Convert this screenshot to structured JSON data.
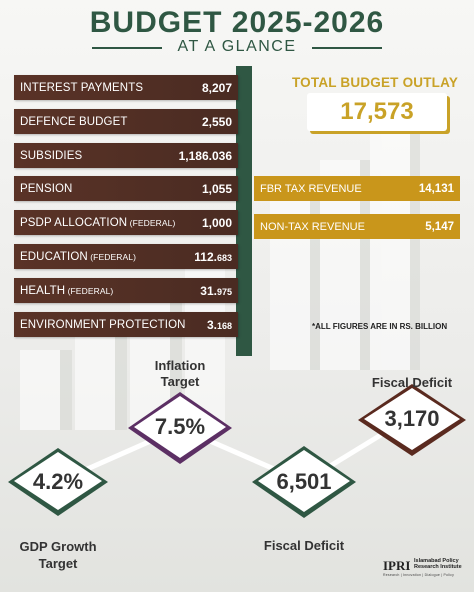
{
  "header": {
    "title": "BUDGET 2025-2026",
    "subtitle": "AT A GLANCE"
  },
  "expenditures": [
    {
      "label": "INTEREST PAYMENTS",
      "sub": "",
      "value": "8,207",
      "value_small": ""
    },
    {
      "label": "DEFENCE BUDGET",
      "sub": "",
      "value": "2,550",
      "value_small": ""
    },
    {
      "label": "SUBSIDIES",
      "sub": "",
      "value": "1,186.036",
      "value_small": ""
    },
    {
      "label": "PENSION",
      "sub": "",
      "value": "1,055",
      "value_small": ""
    },
    {
      "label": "PSDP ALLOCATION",
      "sub": " (FEDERAL)",
      "value": "1,000",
      "value_small": ""
    },
    {
      "label": "EDUCATION",
      "sub": " (FEDERAL)",
      "value": "112.",
      "value_small": "683"
    },
    {
      "label": "HEALTH",
      "sub": " (FEDERAL)",
      "value": "31.",
      "value_small": "975"
    },
    {
      "label": "ENVIRONMENT PROTECTION",
      "sub": "",
      "value": "3.",
      "value_small": "168"
    }
  ],
  "outlay": {
    "title": "TOTAL BUDGET OUTLAY",
    "value": "17,573"
  },
  "revenues": [
    {
      "label": "FBR TAX REVENUE",
      "value": "14,131"
    },
    {
      "label": "NON-TAX REVENUE",
      "value": "5,147"
    }
  ],
  "footnote": "*ALL FIGURES ARE IN RS. BILLION",
  "indicators": {
    "gdp": {
      "value": "4.2%",
      "caption_line1": "GDP Growth",
      "caption_line2": "Target"
    },
    "inflation": {
      "value": "7.5%",
      "caption_line1": "Inflation",
      "caption_line2": "Target"
    },
    "deficit_a": {
      "value": "6,501",
      "caption": "Fiscal Deficit"
    },
    "deficit_b": {
      "value": "3,170",
      "caption": "Fiscal Deficit"
    }
  },
  "colors": {
    "green": "#2f5743",
    "brown": "#4a2b22",
    "gold": "#c9a227",
    "purple": "#5c2f64",
    "maroon": "#5a2a1f"
  },
  "logo": {
    "mark": "IPRI",
    "name_line1": "Islamabad Policy",
    "name_line2": "Research Institute",
    "tagline": "Research | Innovation | Dialogue | Policy"
  }
}
